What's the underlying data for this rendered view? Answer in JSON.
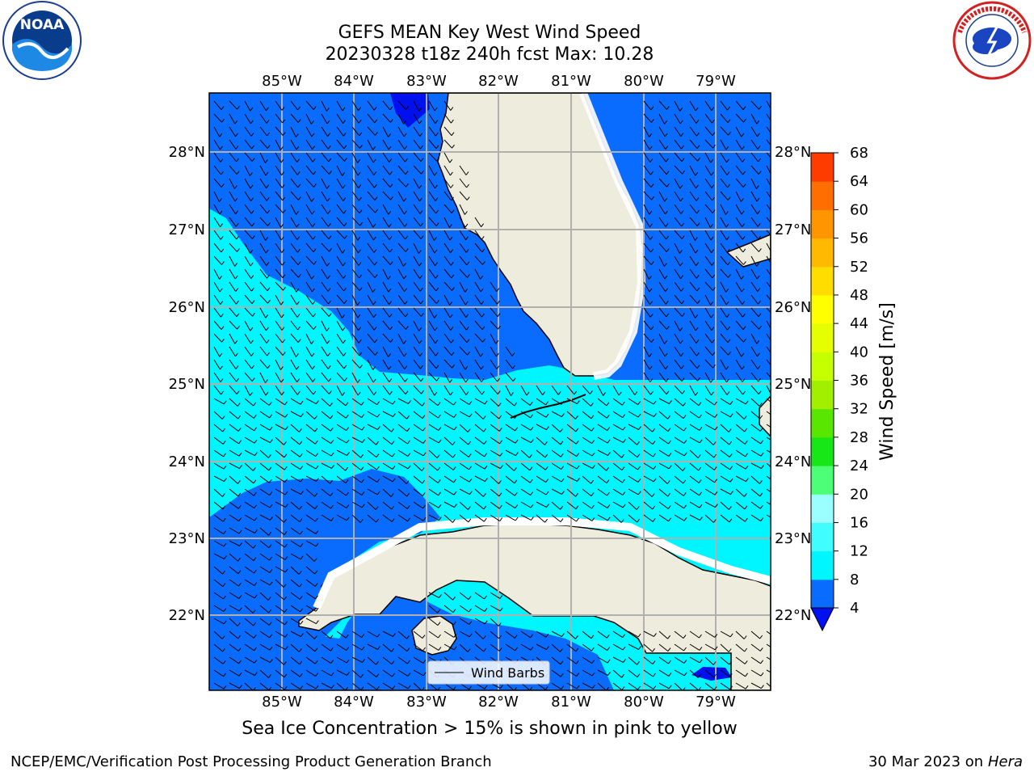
{
  "header": {
    "title_line1": "GEFS MEAN Key West Wind Speed",
    "title_line2": "20230328 t18z 240h fcst   Max: 10.28"
  },
  "map": {
    "lon_labels": [
      "85°W",
      "84°W",
      "83°W",
      "82°W",
      "81°W",
      "80°W",
      "79°W"
    ],
    "lat_labels": [
      "28°N",
      "27°N",
      "26°N",
      "25°N",
      "24°N",
      "23°N",
      "22°N"
    ],
    "legend_label": "Wind Barbs",
    "colors": {
      "ocean_dark": "#0a6cff",
      "ocean_light": "#00f6ff",
      "ocean_darkest": "#0010ee",
      "land": "#eeecdc",
      "grid": "#b0b0b0"
    }
  },
  "colorbar": {
    "label": "Wind Speed [m/s]",
    "ticks": [
      "4",
      "8",
      "12",
      "16",
      "20",
      "24",
      "28",
      "32",
      "36",
      "40",
      "44",
      "48",
      "52",
      "56",
      "60",
      "64",
      "68"
    ],
    "colors": [
      "#0a6cff",
      "#00f6ff",
      "#40fdff",
      "#9bffff",
      "#4dff77",
      "#17e617",
      "#59e600",
      "#a2f000",
      "#c6ff00",
      "#e5ff00",
      "#ffff00",
      "#ffdd00",
      "#ffb900",
      "#ff9500",
      "#ff6e00",
      "#ff3c00",
      "#ff1000"
    ],
    "extend_color": "#0010ee"
  },
  "note": "Sea Ice Concentration > 15% is shown in pink to yellow",
  "footer": {
    "left": "NCEP/EMC/Verification Post Processing Product Generation Branch",
    "right_date": "30 Mar 2023 on",
    "right_host": "Hera"
  },
  "logos": {
    "left": "NOAA",
    "right": "NATIONAL WEATHER SERVICE"
  }
}
